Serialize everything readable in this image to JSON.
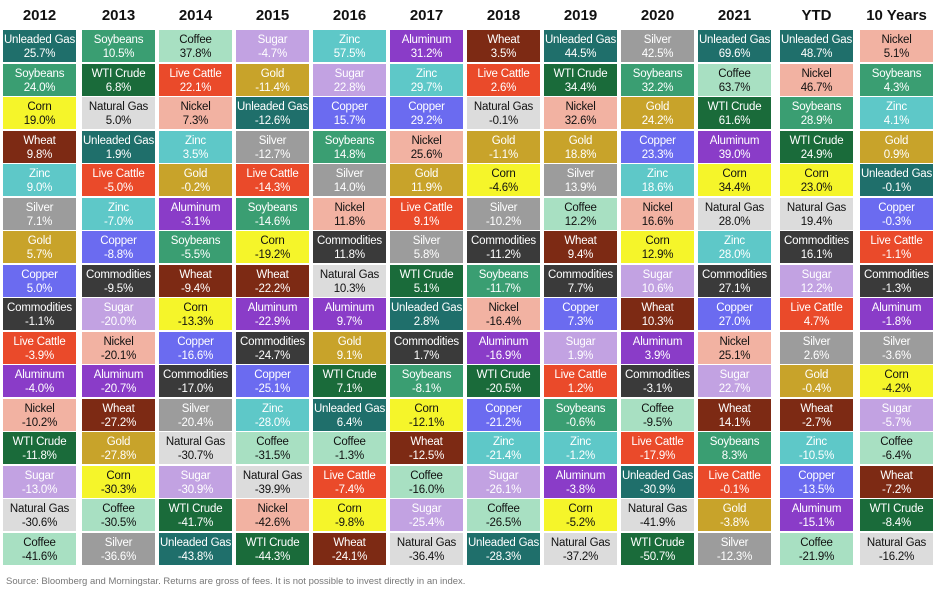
{
  "chart_data": {
    "type": "table",
    "title": "",
    "colors": {
      "Unleaded Gas": "#1f6f6b",
      "Soybeans": "#3a9e72",
      "Corn": "#f5f52a",
      "Wheat": "#7d2a14",
      "Zinc": "#5ec8c8",
      "Silver": "#9c9c9c",
      "Gold": "#c8a32a",
      "Copper": "#6b6bf0",
      "Commodities": "#3a3a3a",
      "Live Cattle": "#ea4a2a",
      "Aluminum": "#8a3cc8",
      "Nickel": "#f2b2a2",
      "WTI Crude": "#1a6b3a",
      "Sugar": "#c2a2e2",
      "Natural Gas": "#dcdcdc",
      "Coffee": "#a8e0c2"
    },
    "text_colors": {
      "Unleaded Gas": "#ffffff",
      "Soybeans": "#ffffff",
      "Corn": "#111111",
      "Wheat": "#ffffff",
      "Zinc": "#ffffff",
      "Silver": "#ffffff",
      "Gold": "#ffffff",
      "Copper": "#ffffff",
      "Commodities": "#ffffff",
      "Live Cattle": "#ffffff",
      "Aluminum": "#ffffff",
      "Nickel": "#111111",
      "WTI Crude": "#ffffff",
      "Sugar": "#ffffff",
      "Natural Gas": "#111111",
      "Coffee": "#111111"
    },
    "columns": [
      {
        "header": "2012",
        "cells": [
          [
            "Unleaded Gas",
            "25.7%"
          ],
          [
            "Soybeans",
            "24.0%"
          ],
          [
            "Corn",
            "19.0%"
          ],
          [
            "Wheat",
            "9.8%"
          ],
          [
            "Zinc",
            "9.0%"
          ],
          [
            "Silver",
            "7.1%"
          ],
          [
            "Gold",
            "5.7%"
          ],
          [
            "Copper",
            "5.0%"
          ],
          [
            "Commodities",
            "-1.1%"
          ],
          [
            "Live Cattle",
            "-3.9%"
          ],
          [
            "Aluminum",
            "-4.0%"
          ],
          [
            "Nickel",
            "-10.2%"
          ],
          [
            "WTI Crude",
            "-11.8%"
          ],
          [
            "Sugar",
            "-13.0%"
          ],
          [
            "Natural Gas",
            "-30.6%"
          ],
          [
            "Coffee",
            "-41.6%"
          ]
        ]
      },
      {
        "header": "2013",
        "cells": [
          [
            "Soybeans",
            "10.5%"
          ],
          [
            "WTI Crude",
            "6.8%"
          ],
          [
            "Natural Gas",
            "5.0%"
          ],
          [
            "Unleaded Gas",
            "1.9%"
          ],
          [
            "Live Cattle",
            "-5.0%"
          ],
          [
            "Zinc",
            "-7.0%"
          ],
          [
            "Copper",
            "-8.8%"
          ],
          [
            "Commodities",
            "-9.5%"
          ],
          [
            "Sugar",
            "-20.0%"
          ],
          [
            "Nickel",
            "-20.1%"
          ],
          [
            "Aluminum",
            "-20.7%"
          ],
          [
            "Wheat",
            "-27.2%"
          ],
          [
            "Gold",
            "-27.8%"
          ],
          [
            "Corn",
            "-30.3%"
          ],
          [
            "Coffee",
            "-30.5%"
          ],
          [
            "Silver",
            "-36.6%"
          ]
        ]
      },
      {
        "header": "2014",
        "cells": [
          [
            "Coffee",
            "37.8%"
          ],
          [
            "Live Cattle",
            "22.1%"
          ],
          [
            "Nickel",
            "7.3%"
          ],
          [
            "Zinc",
            "3.5%"
          ],
          [
            "Gold",
            "-0.2%"
          ],
          [
            "Aluminum",
            "-3.1%"
          ],
          [
            "Soybeans",
            "-5.5%"
          ],
          [
            "Wheat",
            "-9.4%"
          ],
          [
            "Corn",
            "-13.3%"
          ],
          [
            "Copper",
            "-16.6%"
          ],
          [
            "Commodities",
            "-17.0%"
          ],
          [
            "Silver",
            "-20.4%"
          ],
          [
            "Natural Gas",
            "-30.7%"
          ],
          [
            "Sugar",
            "-30.9%"
          ],
          [
            "WTI Crude",
            "-41.7%"
          ],
          [
            "Unleaded Gas",
            "-43.8%"
          ]
        ]
      },
      {
        "header": "2015",
        "cells": [
          [
            "Sugar",
            "-4.7%"
          ],
          [
            "Gold",
            "-11.4%"
          ],
          [
            "Unleaded Gas",
            "-12.6%"
          ],
          [
            "Silver",
            "-12.7%"
          ],
          [
            "Live Cattle",
            "-14.3%"
          ],
          [
            "Soybeans",
            "-14.6%"
          ],
          [
            "Corn",
            "-19.2%"
          ],
          [
            "Wheat",
            "-22.2%"
          ],
          [
            "Aluminum",
            "-22.9%"
          ],
          [
            "Commodities",
            "-24.7%"
          ],
          [
            "Copper",
            "-25.1%"
          ],
          [
            "Zinc",
            "-28.0%"
          ],
          [
            "Coffee",
            "-31.5%"
          ],
          [
            "Natural Gas",
            "-39.9%"
          ],
          [
            "Nickel",
            "-42.6%"
          ],
          [
            "WTI Crude",
            "-44.3%"
          ]
        ]
      },
      {
        "header": "2016",
        "cells": [
          [
            "Zinc",
            "57.5%"
          ],
          [
            "Sugar",
            "22.8%"
          ],
          [
            "Copper",
            "15.7%"
          ],
          [
            "Soybeans",
            "14.8%"
          ],
          [
            "Silver",
            "14.0%"
          ],
          [
            "Nickel",
            "11.8%"
          ],
          [
            "Commodities",
            "11.8%"
          ],
          [
            "Natural Gas",
            "10.3%"
          ],
          [
            "Aluminum",
            "9.7%"
          ],
          [
            "Gold",
            "9.1%"
          ],
          [
            "WTI Crude",
            "7.1%"
          ],
          [
            "Unleaded Gas",
            "6.4%"
          ],
          [
            "Coffee",
            "-1.3%"
          ],
          [
            "Live Cattle",
            "-7.4%"
          ],
          [
            "Corn",
            "-9.8%"
          ],
          [
            "Wheat",
            "-24.1%"
          ]
        ]
      },
      {
        "header": "2017",
        "cells": [
          [
            "Aluminum",
            "31.2%"
          ],
          [
            "Zinc",
            "29.7%"
          ],
          [
            "Copper",
            "29.2%"
          ],
          [
            "Nickel",
            "25.6%"
          ],
          [
            "Gold",
            "11.9%"
          ],
          [
            "Live Cattle",
            "9.1%"
          ],
          [
            "Silver",
            "5.8%"
          ],
          [
            "WTI Crude",
            "5.1%"
          ],
          [
            "Unleaded Gas",
            "2.8%"
          ],
          [
            "Commodities",
            "1.7%"
          ],
          [
            "Soybeans",
            "-8.1%"
          ],
          [
            "Corn",
            "-12.1%"
          ],
          [
            "Wheat",
            "-12.5%"
          ],
          [
            "Coffee",
            "-16.0%"
          ],
          [
            "Sugar",
            "-25.4%"
          ],
          [
            "Natural Gas",
            "-36.4%"
          ]
        ]
      },
      {
        "header": "2018",
        "cells": [
          [
            "Wheat",
            "3.5%"
          ],
          [
            "Live Cattle",
            "2.6%"
          ],
          [
            "Natural Gas",
            "-0.1%"
          ],
          [
            "Gold",
            "-1.1%"
          ],
          [
            "Corn",
            "-4.6%"
          ],
          [
            "Silver",
            "-10.2%"
          ],
          [
            "Commodities",
            "-11.2%"
          ],
          [
            "Soybeans",
            "-11.7%"
          ],
          [
            "Nickel",
            "-16.4%"
          ],
          [
            "Aluminum",
            "-16.9%"
          ],
          [
            "WTI Crude",
            "-20.5%"
          ],
          [
            "Copper",
            "-21.2%"
          ],
          [
            "Zinc",
            "-21.4%"
          ],
          [
            "Sugar",
            "-26.1%"
          ],
          [
            "Coffee",
            "-26.5%"
          ],
          [
            "Unleaded Gas",
            "-28.3%"
          ]
        ]
      },
      {
        "header": "2019",
        "cells": [
          [
            "Unleaded Gas",
            "44.5%"
          ],
          [
            "WTI Crude",
            "34.4%"
          ],
          [
            "Nickel",
            "32.6%"
          ],
          [
            "Gold",
            "18.8%"
          ],
          [
            "Silver",
            "13.9%"
          ],
          [
            "Coffee",
            "12.2%"
          ],
          [
            "Wheat",
            "9.4%"
          ],
          [
            "Commodities",
            "7.7%"
          ],
          [
            "Copper",
            "7.3%"
          ],
          [
            "Sugar",
            "1.9%"
          ],
          [
            "Live Cattle",
            "1.2%"
          ],
          [
            "Soybeans",
            "-0.6%"
          ],
          [
            "Zinc",
            "-1.2%"
          ],
          [
            "Aluminum",
            "-3.8%"
          ],
          [
            "Corn",
            "-5.2%"
          ],
          [
            "Natural Gas",
            "-37.2%"
          ]
        ]
      },
      {
        "header": "2020",
        "cells": [
          [
            "Silver",
            "42.5%"
          ],
          [
            "Soybeans",
            "32.2%"
          ],
          [
            "Gold",
            "24.2%"
          ],
          [
            "Copper",
            "23.3%"
          ],
          [
            "Zinc",
            "18.6%"
          ],
          [
            "Nickel",
            "16.6%"
          ],
          [
            "Corn",
            "12.9%"
          ],
          [
            "Sugar",
            "10.6%"
          ],
          [
            "Wheat",
            "10.3%"
          ],
          [
            "Aluminum",
            "3.9%"
          ],
          [
            "Commodities",
            "-3.1%"
          ],
          [
            "Coffee",
            "-9.5%"
          ],
          [
            "Live Cattle",
            "-17.9%"
          ],
          [
            "Unleaded Gas",
            "-30.9%"
          ],
          [
            "Natural Gas",
            "-41.9%"
          ],
          [
            "WTI Crude",
            "-50.7%"
          ]
        ]
      },
      {
        "header": "2021",
        "cells": [
          [
            "Unleaded Gas",
            "69.6%"
          ],
          [
            "Coffee",
            "63.7%"
          ],
          [
            "WTI Crude",
            "61.6%"
          ],
          [
            "Aluminum",
            "39.0%"
          ],
          [
            "Corn",
            "34.4%"
          ],
          [
            "Natural Gas",
            "28.0%"
          ],
          [
            "Zinc",
            "28.0%"
          ],
          [
            "Commodities",
            "27.1%"
          ],
          [
            "Copper",
            "27.0%"
          ],
          [
            "Nickel",
            "25.1%"
          ],
          [
            "Sugar",
            "22.7%"
          ],
          [
            "Wheat",
            "14.1%"
          ],
          [
            "Soybeans",
            "8.3%"
          ],
          [
            "Live Cattle",
            "-0.1%"
          ],
          [
            "Gold",
            "-3.8%"
          ],
          [
            "Silver",
            "-12.3%"
          ]
        ]
      },
      {
        "header": "YTD",
        "cells": [
          [
            "Unleaded Gas",
            "48.7%"
          ],
          [
            "Nickel",
            "46.7%"
          ],
          [
            "Soybeans",
            "28.9%"
          ],
          [
            "WTI Crude",
            "24.9%"
          ],
          [
            "Corn",
            "23.0%"
          ],
          [
            "Natural Gas",
            "19.4%"
          ],
          [
            "Commodities",
            "16.1%"
          ],
          [
            "Sugar",
            "12.2%"
          ],
          [
            "Live Cattle",
            "4.7%"
          ],
          [
            "Silver",
            "2.6%"
          ],
          [
            "Gold",
            "-0.4%"
          ],
          [
            "Wheat",
            "-2.7%"
          ],
          [
            "Zinc",
            "-10.5%"
          ],
          [
            "Copper",
            "-13.5%"
          ],
          [
            "Aluminum",
            "-15.1%"
          ],
          [
            "Coffee",
            "-21.9%"
          ]
        ]
      },
      {
        "header": "10 Years",
        "cells": [
          [
            "Nickel",
            "5.1%"
          ],
          [
            "Soybeans",
            "4.3%"
          ],
          [
            "Zinc",
            "4.1%"
          ],
          [
            "Gold",
            "0.9%"
          ],
          [
            "Unleaded Gas",
            "-0.1%"
          ],
          [
            "Copper",
            "-0.3%"
          ],
          [
            "Live Cattle",
            "-1.1%"
          ],
          [
            "Commodities",
            "-1.3%"
          ],
          [
            "Aluminum",
            "-1.8%"
          ],
          [
            "Silver",
            "-3.6%"
          ],
          [
            "Corn",
            "-4.2%"
          ],
          [
            "Sugar",
            "-5.7%"
          ],
          [
            "Coffee",
            "-6.4%"
          ],
          [
            "Wheat",
            "-7.2%"
          ],
          [
            "WTI Crude",
            "-8.4%"
          ],
          [
            "Natural Gas",
            "-16.2%"
          ]
        ]
      }
    ]
  },
  "footer": {
    "source": "Source: Bloomberg and Morningstar. Returns are gross of fees. It is not possible to invest directly in an index."
  }
}
